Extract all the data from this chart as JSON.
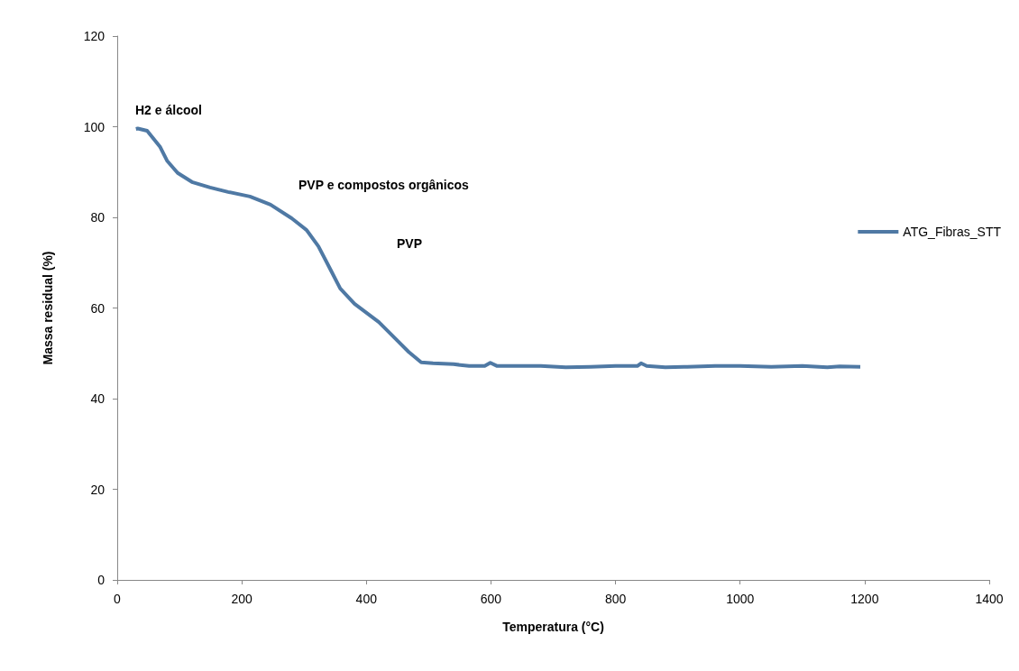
{
  "chart_data": {
    "type": "line",
    "xlabel": "Temperatura (°C)",
    "ylabel": "Massa residual (%)",
    "xlim": [
      0,
      1400
    ],
    "xticks": [
      0,
      200,
      400,
      600,
      800,
      1000,
      1200,
      1400
    ],
    "ylim": [
      0,
      120
    ],
    "yticks": [
      0,
      20,
      40,
      60,
      80,
      100,
      120
    ],
    "grid": false,
    "legend": "right",
    "marker": "none",
    "line_style": "solid",
    "annotations": [
      "H2 e álcool",
      "PVP e compostos orgânicos",
      "PVP"
    ],
    "series": [
      {
        "name": "ATG_Fibras_STT",
        "color": "#4f79a4",
        "x": [
          30,
          33,
          48,
          69,
          80,
          97,
          120,
          149,
          178,
          213,
          246,
          280,
          304,
          323,
          343,
          358,
          381,
          420,
          449,
          468,
          488,
          507,
          540,
          565,
          590,
          599,
          610,
          680,
          720,
          760,
          800,
          835,
          841,
          850,
          880,
          910,
          960,
          1000,
          1050,
          1100,
          1140,
          1160,
          1193
        ],
        "values": [
          99.5,
          99.6,
          99.1,
          95.5,
          92.5,
          89.8,
          87.8,
          86.6,
          85.6,
          84.6,
          82.8,
          79.8,
          77.2,
          73.6,
          68.3,
          64.3,
          60.9,
          56.9,
          52.9,
          50.3,
          48.0,
          47.8,
          47.6,
          47.2,
          47.2,
          47.9,
          47.2,
          47.2,
          46.9,
          47.0,
          47.2,
          47.2,
          47.8,
          47.2,
          46.9,
          47.0,
          47.2,
          47.2,
          47.0,
          47.2,
          46.9,
          47.1,
          47.0
        ]
      }
    ]
  }
}
